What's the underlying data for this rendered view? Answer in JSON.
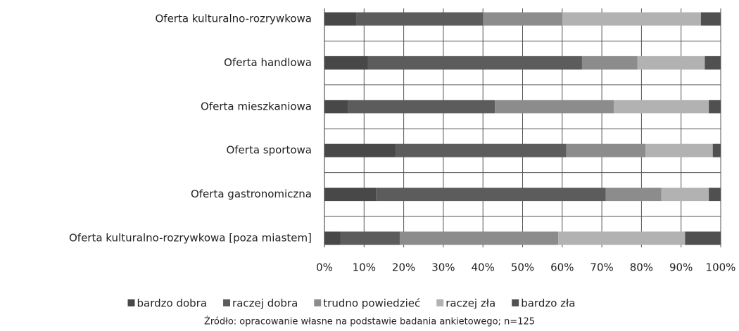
{
  "chart_data": {
    "type": "stacked-bar-horizontal",
    "categories": [
      "Oferta kulturalno-rozrywkowa",
      "Oferta handlowa",
      "Oferta mieszkaniowa",
      "Oferta sportowa",
      "Oferta gastronomiczna",
      "Oferta kulturalno-rozrywkowa [poza miastem]"
    ],
    "series": [
      {
        "name": "bardzo dobra",
        "color": "#484848",
        "values": [
          8,
          11,
          6,
          18,
          13,
          4
        ]
      },
      {
        "name": "raczej dobra",
        "color": "#5c5c5c",
        "values": [
          32,
          54,
          37,
          43,
          58,
          15
        ]
      },
      {
        "name": "trudno powiedzieć",
        "color": "#8c8c8c",
        "values": [
          20,
          14,
          30,
          20,
          14,
          40
        ]
      },
      {
        "name": "raczej zła",
        "color": "#b2b2b2",
        "values": [
          35,
          17,
          24,
          17,
          12,
          32
        ]
      },
      {
        "name": "bardzo zła",
        "color": "#505050",
        "values": [
          5,
          4,
          3,
          2,
          3,
          9
        ]
      }
    ],
    "xlim": [
      0,
      100
    ],
    "xticks": [
      {
        "value": 0,
        "label": "0%"
      },
      {
        "value": 10,
        "label": "10%"
      },
      {
        "value": 20,
        "label": "20%"
      },
      {
        "value": 30,
        "label": "30%"
      },
      {
        "value": 40,
        "label": "40%"
      },
      {
        "value": 50,
        "label": "50%"
      },
      {
        "value": 60,
        "label": "60%"
      },
      {
        "value": 70,
        "label": "70%"
      },
      {
        "value": 80,
        "label": "80%"
      },
      {
        "value": 90,
        "label": "90%"
      },
      {
        "value": 100,
        "label": "100%"
      }
    ],
    "grid": true,
    "legend": "bottom",
    "source": "Źródło: opracowanie własne na podstawie badania ankietowego; n=125"
  }
}
